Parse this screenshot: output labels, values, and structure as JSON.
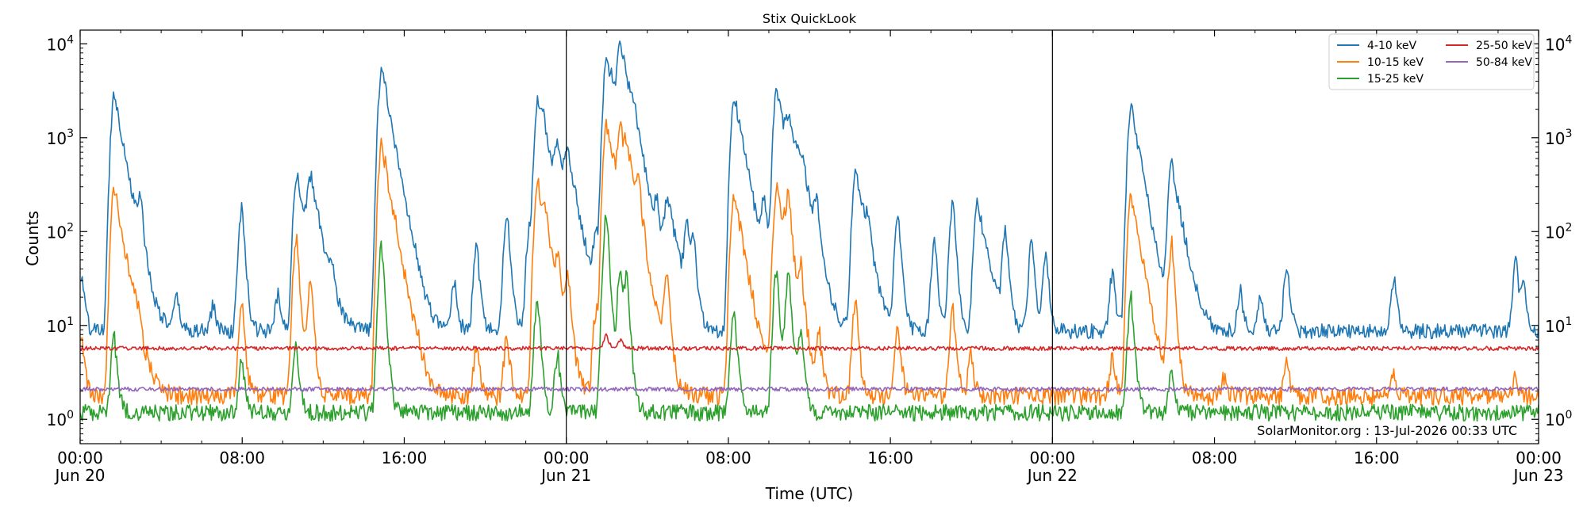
{
  "chart_data": {
    "type": "line",
    "title": "Stix QuickLook",
    "xlabel": "Time (UTC)",
    "ylabel": "Counts",
    "yscale": "log",
    "ylim": [
      0.55,
      14000
    ],
    "x_range_hours": [
      0,
      72
    ],
    "x_ticks": [
      {
        "hour": 0,
        "label": "00:00",
        "sublabel": "Jun 20"
      },
      {
        "hour": 8,
        "label": "08:00",
        "sublabel": ""
      },
      {
        "hour": 16,
        "label": "16:00",
        "sublabel": ""
      },
      {
        "hour": 24,
        "label": "00:00",
        "sublabel": "Jun 21"
      },
      {
        "hour": 32,
        "label": "08:00",
        "sublabel": ""
      },
      {
        "hour": 40,
        "label": "16:00",
        "sublabel": ""
      },
      {
        "hour": 48,
        "label": "00:00",
        "sublabel": "Jun 22"
      },
      {
        "hour": 56,
        "label": "08:00",
        "sublabel": ""
      },
      {
        "hour": 64,
        "label": "16:00",
        "sublabel": ""
      },
      {
        "hour": 72,
        "label": "00:00",
        "sublabel": "Jun 23"
      }
    ],
    "y_ticks": [
      {
        "value": 1,
        "base": "10",
        "exp": "0"
      },
      {
        "value": 10,
        "base": "10",
        "exp": "1"
      },
      {
        "value": 100,
        "base": "10",
        "exp": "2"
      },
      {
        "value": 1000,
        "base": "10",
        "exp": "3"
      },
      {
        "value": 10000,
        "base": "10",
        "exp": "4"
      }
    ],
    "day_boundaries_hours": [
      24,
      48
    ],
    "legend_position": "top-right",
    "annotation": "SolarMonitor.org : 13-Jul-2026 00:33 UTC",
    "series": [
      {
        "name": "4-10 keV",
        "color": "#1f77b4",
        "baseline": 8.8,
        "peaks": [
          [
            0.1,
            35
          ],
          [
            1.7,
            3000
          ],
          [
            3.0,
            170
          ],
          [
            4.8,
            20
          ],
          [
            6.6,
            17
          ],
          [
            8.0,
            180
          ],
          [
            9.8,
            22
          ],
          [
            10.7,
            420
          ],
          [
            11.4,
            340
          ],
          [
            12.5,
            30
          ],
          [
            14.9,
            5500
          ],
          [
            16.5,
            25
          ],
          [
            18.5,
            30
          ],
          [
            19.6,
            70
          ],
          [
            21.1,
            160
          ],
          [
            22.2,
            110
          ],
          [
            22.6,
            2300
          ],
          [
            22.8,
            900
          ],
          [
            23.6,
            700
          ],
          [
            24.1,
            500
          ],
          [
            25.5,
            100
          ],
          [
            26.0,
            6800
          ],
          [
            26.3,
            1500
          ],
          [
            26.7,
            9000
          ],
          [
            27.3,
            800
          ],
          [
            28.5,
            130
          ],
          [
            29.0,
            220
          ],
          [
            30.0,
            110
          ],
          [
            30.3,
            80
          ],
          [
            32.3,
            2800
          ],
          [
            33.1,
            100
          ],
          [
            33.8,
            200
          ],
          [
            34.4,
            3200
          ],
          [
            35.0,
            1300
          ],
          [
            35.6,
            420
          ],
          [
            36.4,
            150
          ],
          [
            38.3,
            450
          ],
          [
            38.9,
            80
          ],
          [
            40.4,
            150
          ],
          [
            42.2,
            80
          ],
          [
            43.1,
            200
          ],
          [
            44.3,
            210
          ],
          [
            45.7,
            100
          ],
          [
            47.0,
            80
          ],
          [
            47.7,
            60
          ],
          [
            51.0,
            40
          ],
          [
            51.9,
            2100
          ],
          [
            53.9,
            500
          ],
          [
            57.3,
            25
          ],
          [
            58.3,
            20
          ],
          [
            59.6,
            45
          ],
          [
            64.9,
            33
          ],
          [
            70.9,
            50
          ],
          [
            71.3,
            30
          ]
        ]
      },
      {
        "name": "10-15 keV",
        "color": "#ff7f0e",
        "baseline": 1.8,
        "peaks": [
          [
            0.1,
            8
          ],
          [
            1.7,
            280
          ],
          [
            2.8,
            10
          ],
          [
            8.0,
            18
          ],
          [
            10.7,
            90
          ],
          [
            11.4,
            30
          ],
          [
            14.9,
            850
          ],
          [
            16.6,
            4
          ],
          [
            19.6,
            6
          ],
          [
            21.1,
            8
          ],
          [
            22.6,
            330
          ],
          [
            23.0,
            60
          ],
          [
            23.6,
            40
          ],
          [
            24.1,
            30
          ],
          [
            25.5,
            15
          ],
          [
            26.0,
            1400
          ],
          [
            26.7,
            1000
          ],
          [
            27.0,
            350
          ],
          [
            27.6,
            200
          ],
          [
            29.0,
            30
          ],
          [
            32.3,
            250
          ],
          [
            34.4,
            300
          ],
          [
            35.0,
            200
          ],
          [
            35.6,
            40
          ],
          [
            36.5,
            8
          ],
          [
            38.3,
            18
          ],
          [
            40.4,
            10
          ],
          [
            43.1,
            15
          ],
          [
            44.0,
            5
          ],
          [
            51.0,
            5
          ],
          [
            51.9,
            230
          ],
          [
            53.9,
            75
          ],
          [
            56.5,
            3
          ],
          [
            59.6,
            4
          ],
          [
            64.9,
            3
          ],
          [
            70.9,
            3
          ]
        ]
      },
      {
        "name": "15-25 keV",
        "color": "#2ca02c",
        "baseline": 1.2,
        "peaks": [
          [
            1.7,
            7.5
          ],
          [
            8.0,
            4.5
          ],
          [
            10.7,
            6
          ],
          [
            14.9,
            70
          ],
          [
            22.6,
            20
          ],
          [
            23.6,
            5
          ],
          [
            26.0,
            150
          ],
          [
            26.7,
            40
          ],
          [
            27.0,
            30
          ],
          [
            32.3,
            15
          ],
          [
            34.4,
            40
          ],
          [
            35.0,
            35
          ],
          [
            35.6,
            10
          ],
          [
            51.9,
            20
          ],
          [
            53.9,
            3
          ]
        ]
      },
      {
        "name": "25-50 keV",
        "color": "#d62728",
        "baseline": 5.7,
        "peaks": [
          [
            26.0,
            8
          ],
          [
            26.7,
            7
          ]
        ]
      },
      {
        "name": "50-84 keV",
        "color": "#9467bd",
        "baseline": 2.1,
        "peaks": []
      }
    ]
  }
}
